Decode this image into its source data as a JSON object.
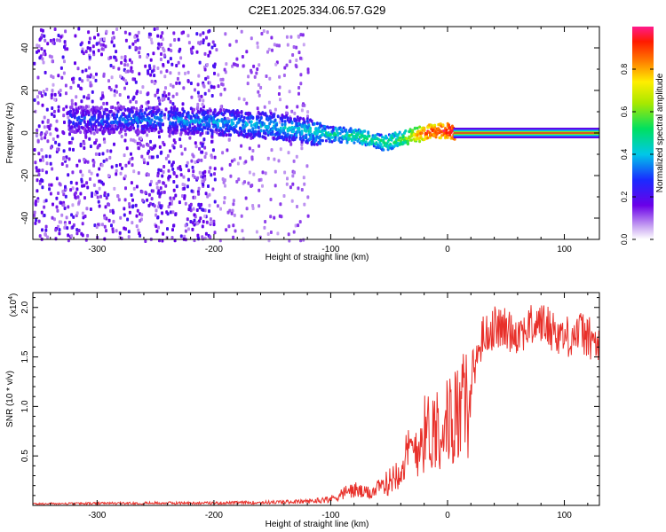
{
  "title": "C2E1.2025.334.06.57.G29",
  "colors": {
    "snr_line": "#e8302a",
    "background": "#ffffff",
    "axis": "#000000"
  },
  "chart_data": [
    {
      "type": "heatmap",
      "name": "spectrogram",
      "xlabel": "Height of straight line (km)",
      "ylabel": "Frequency (Hz)",
      "xlim": [
        -355,
        130
      ],
      "ylim": [
        -50,
        50
      ],
      "x_ticks": [
        -300,
        -200,
        -100,
        0,
        100
      ],
      "y_ticks": [
        -40,
        -20,
        0,
        20,
        40
      ],
      "colorbar": {
        "label": "Normalized spectral amplitude",
        "range": [
          0,
          1
        ],
        "ticks": [
          0.0,
          0.2,
          0.4,
          0.6,
          0.8
        ],
        "tick_labels": [
          "0.0",
          "0.2",
          "0.4",
          "0.6",
          "0.8"
        ]
      },
      "ridge": {
        "description_points_km": [
          -320,
          -250,
          -200,
          -150,
          -100,
          -75,
          -55,
          -40,
          -20,
          0,
          10,
          130
        ],
        "frequency_hz": [
          7,
          7,
          6,
          4,
          0,
          -1,
          -4,
          -2,
          1,
          2,
          0,
          0
        ],
        "amplitude": [
          0.3,
          0.35,
          0.38,
          0.4,
          0.45,
          0.5,
          0.5,
          0.55,
          0.9,
          0.95,
          1.0,
          1.0
        ]
      }
    },
    {
      "type": "line",
      "name": "snr",
      "xlabel": "Height of straight line (km)",
      "ylabel": "SNR (10 * v/v)",
      "scale_label": "(x10",
      "scale_exponent": "4",
      "xlim": [
        -355,
        130
      ],
      "ylim": [
        0,
        2.15
      ],
      "x_ticks": [
        -300,
        -200,
        -100,
        0,
        100
      ],
      "y_ticks": [
        0.5,
        1.0,
        1.5,
        2.0
      ],
      "y_tick_labels": [
        "0.5",
        "1.0",
        "1.5",
        "2.0"
      ],
      "series": [
        {
          "name": "SNR",
          "envelope_x": [
            -355,
            -250,
            -200,
            -150,
            -120,
            -100,
            -90,
            -80,
            -70,
            -60,
            -50,
            -40,
            -30,
            -20,
            -10,
            0,
            10,
            20,
            30,
            40,
            60,
            80,
            100,
            115,
            130
          ],
          "envelope_y": [
            0.02,
            0.03,
            0.03,
            0.04,
            0.05,
            0.08,
            0.15,
            0.2,
            0.15,
            0.2,
            0.3,
            0.5,
            0.7,
            0.9,
            1.0,
            1.05,
            1.2,
            1.3,
            1.7,
            1.8,
            1.75,
            1.85,
            1.7,
            1.75,
            1.6
          ]
        }
      ]
    }
  ]
}
